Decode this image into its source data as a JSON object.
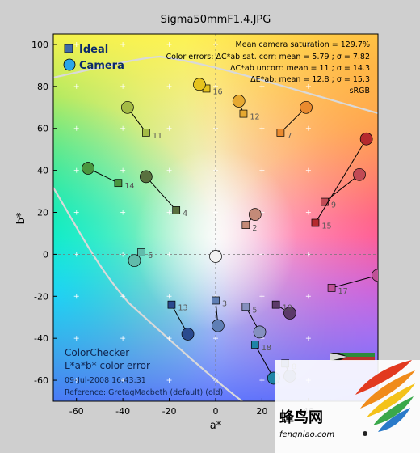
{
  "chart_data": {
    "type": "scatter",
    "title": "Sigma50mmF1.4.JPG",
    "xlabel": "a*",
    "ylabel": "b*",
    "xlim": [
      -70,
      70
    ],
    "ylim": [
      -70,
      105
    ],
    "xticks": [
      -60,
      -40,
      -20,
      0,
      20,
      40
    ],
    "yticks": [
      -60,
      -40,
      -20,
      0,
      20,
      40,
      60,
      80,
      100
    ],
    "grid": true,
    "legend_position": "top-left",
    "series": [
      {
        "name": "Ideal",
        "marker": "square"
      },
      {
        "name": "Camera",
        "marker": "circle"
      }
    ],
    "patches": [
      {
        "id": "2",
        "ideal": [
          13,
          14
        ],
        "camera": [
          17,
          19
        ],
        "color": "#c48a78"
      },
      {
        "id": "3",
        "ideal": [
          0,
          -22
        ],
        "camera": [
          1,
          -34
        ],
        "color": "#5f7fb5"
      },
      {
        "id": "4",
        "ideal": [
          -17,
          21
        ],
        "camera": [
          -30,
          37
        ],
        "color": "#59703f"
      },
      {
        "id": "5",
        "ideal": [
          13,
          -25
        ],
        "camera": [
          19,
          -37
        ],
        "color": "#8590bf"
      },
      {
        "id": "6",
        "ideal": [
          -32,
          1
        ],
        "camera": [
          -35,
          -3
        ],
        "color": "#61bbab"
      },
      {
        "id": "7",
        "ideal": [
          28,
          58
        ],
        "camera": [
          39,
          70
        ],
        "color": "#ea8a2e"
      },
      {
        "id": "9",
        "ideal": [
          47,
          25
        ],
        "camera": [
          62,
          38
        ],
        "color": "#c24a55"
      },
      {
        "id": "10",
        "ideal": [
          26,
          -24
        ],
        "camera": [
          32,
          -28
        ],
        "color": "#5c3a69"
      },
      {
        "id": "11",
        "ideal": [
          -30,
          58
        ],
        "camera": [
          -38,
          70
        ],
        "color": "#a4bb45"
      },
      {
        "id": "12",
        "ideal": [
          12,
          67
        ],
        "camera": [
          10,
          73
        ],
        "color": "#e6a931"
      },
      {
        "id": "13",
        "ideal": [
          -19,
          -24
        ],
        "camera": [
          -12,
          -38
        ],
        "color": "#2a4a8f"
      },
      {
        "id": "14",
        "ideal": [
          -42,
          34
        ],
        "camera": [
          -55,
          41
        ],
        "color": "#4a963f"
      },
      {
        "id": "15",
        "ideal": [
          43,
          15
        ],
        "camera": [
          65,
          55
        ],
        "color": "#b52a2e"
      },
      {
        "id": "16",
        "ideal": [
          -4,
          79
        ],
        "camera": [
          -7,
          81
        ],
        "color": "#e5c31d"
      },
      {
        "id": "17",
        "ideal": [
          50,
          -16
        ],
        "camera": [
          70,
          -10
        ],
        "color": "#bf5197"
      },
      {
        "id": "18",
        "ideal": [
          17,
          -43
        ],
        "camera": [
          25,
          -59
        ],
        "color": "#1f84a6"
      },
      {
        "id": "8",
        "ideal": [
          30,
          -52
        ],
        "camera": [
          32,
          -58
        ],
        "color": "#3d55a3"
      },
      {
        "id": "1",
        "ideal": [
          0,
          0
        ],
        "camera": [
          0,
          -1
        ],
        "color": "#f2f2f2"
      }
    ]
  },
  "info": {
    "line1": "Mean camera saturation = 129.7%",
    "line2": "Color errors: ΔC*ab sat. corr:  mean = 5.79 ;  σ = 7.82",
    "line3": "ΔC*ab uncorr:  mean = 11 ;  σ = 14.3",
    "line4": "ΔE*ab:  mean = 12.8 ;  σ = 15.3",
    "line5": "sRGB"
  },
  "footer": {
    "line1": "ColorChecker",
    "line2": "L*a*b* color error",
    "line3": "09-Jul-2008 16:43:31",
    "line4": "Reference: GretagMacbeth (default) (old)"
  },
  "watermark": {
    "text": "蜂鸟网",
    "url": "fengniao.com"
  }
}
